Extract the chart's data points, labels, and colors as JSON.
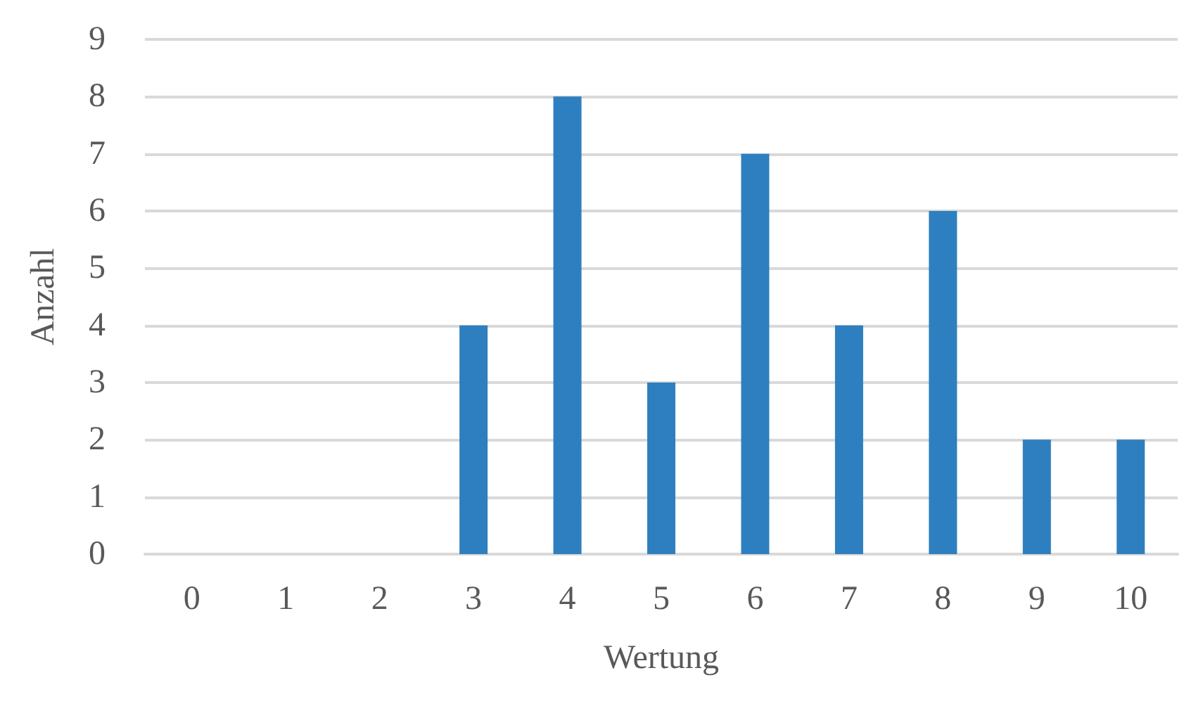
{
  "chart_data": {
    "type": "bar",
    "xlabel": "Wertung",
    "ylabel": "Anzahl",
    "categories": [
      "0",
      "1",
      "2",
      "3",
      "4",
      "5",
      "6",
      "7",
      "8",
      "9",
      "10"
    ],
    "values": [
      0,
      0,
      0,
      4,
      8,
      3,
      7,
      4,
      6,
      2,
      2
    ],
    "color": "#2e7fbf",
    "ylim": [
      0,
      9
    ],
    "yticks": [
      0,
      1,
      2,
      3,
      4,
      5,
      6,
      7,
      8,
      9
    ],
    "grid": "y"
  }
}
